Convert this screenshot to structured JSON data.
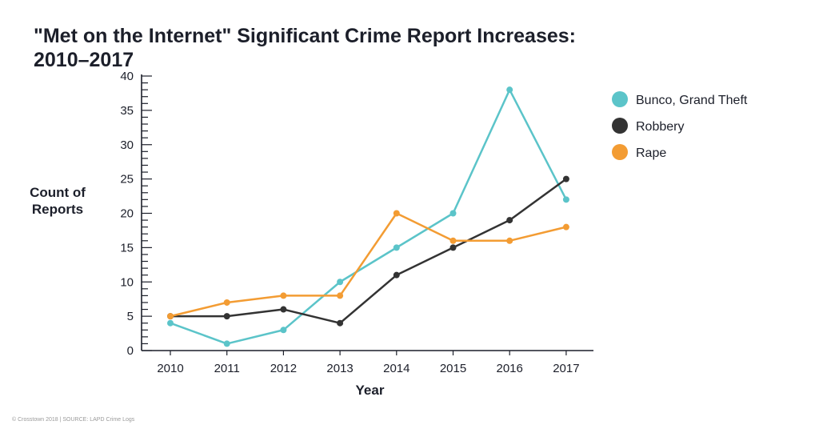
{
  "chart_data": {
    "type": "line",
    "title_lines": [
      "\"Met on the Internet\" Significant Crime Report Increases:",
      "2010–2017"
    ],
    "xlabel": "Year",
    "ylabel_lines": [
      "Count of",
      "Reports"
    ],
    "categories": [
      "2010",
      "2011",
      "2012",
      "2013",
      "2014",
      "2015",
      "2016",
      "2017"
    ],
    "ylim": [
      0,
      40
    ],
    "yticks": [
      0,
      5,
      10,
      15,
      20,
      25,
      30,
      35,
      40
    ],
    "minor_tick_step": 1,
    "grid": false,
    "legend_position": "right",
    "series": [
      {
        "name": "Bunco, Grand Theft",
        "color": "#5bc4c9",
        "values": [
          4,
          1,
          3,
          10,
          15,
          20,
          38,
          22
        ]
      },
      {
        "name": "Robbery",
        "color": "#333333",
        "values": [
          5,
          5,
          6,
          4,
          11,
          15,
          19,
          25
        ]
      },
      {
        "name": "Rape",
        "color": "#f39c33",
        "values": [
          5,
          7,
          8,
          8,
          20,
          16,
          16,
          18
        ]
      }
    ]
  },
  "footer": "© Crosstown 2018 | SOURCE: LAPD Crime Logs"
}
